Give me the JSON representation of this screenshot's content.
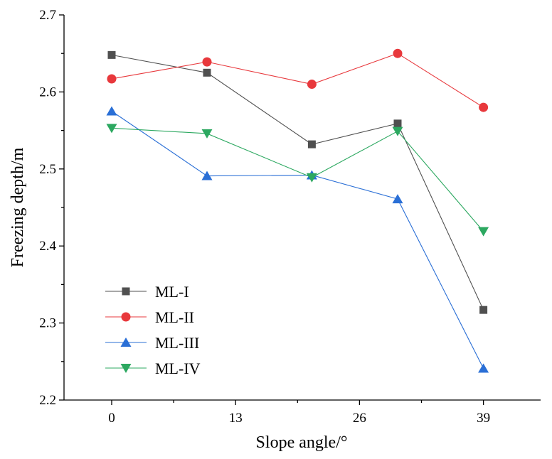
{
  "chart_data": {
    "type": "line",
    "xlabel": "Slope angle/°",
    "ylabel": "Freezing depth/m",
    "xlim": [
      -5,
      45
    ],
    "ylim": [
      2.2,
      2.7
    ],
    "xticks": [
      0,
      13,
      26,
      39
    ],
    "xtick_labels": [
      "0",
      "13",
      "26",
      "39"
    ],
    "yticks": [
      2.2,
      2.3,
      2.4,
      2.5,
      2.6,
      2.7
    ],
    "ytick_labels": [
      "2.2",
      "2.3",
      "2.4",
      "2.5",
      "2.6",
      "2.7"
    ],
    "x": [
      0,
      10,
      21,
      30,
      39
    ],
    "legend_position": "lower-left",
    "grid": false,
    "series": [
      {
        "name": "ML-I",
        "values": [
          2.648,
          2.625,
          2.532,
          2.559,
          2.317
        ],
        "color": "#505050",
        "marker": "square"
      },
      {
        "name": "ML-II",
        "values": [
          2.617,
          2.639,
          2.61,
          2.65,
          2.58
        ],
        "color": "#e8383c",
        "marker": "circle"
      },
      {
        "name": "ML-III",
        "values": [
          2.575,
          2.491,
          2.492,
          2.461,
          2.241
        ],
        "color": "#2a6fd6",
        "marker": "triangle-up"
      },
      {
        "name": "ML-IV",
        "values": [
          2.553,
          2.546,
          2.489,
          2.549,
          2.419
        ],
        "color": "#2ca860",
        "marker": "triangle-down"
      }
    ]
  }
}
